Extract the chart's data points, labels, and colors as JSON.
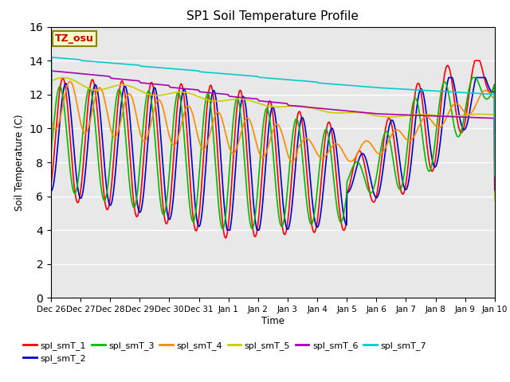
{
  "title": "SP1 Soil Temperature Profile",
  "xlabel": "Time",
  "ylabel": "Soil Temperature (C)",
  "ylim": [
    0,
    16
  ],
  "yticks": [
    0,
    2,
    4,
    6,
    8,
    10,
    12,
    14,
    16
  ],
  "annotation_text": "TZ_osu",
  "annotation_color": "#cc0000",
  "annotation_bg": "#ffffcc",
  "annotation_border": "#888800",
  "bg_color": "#e8e8e8",
  "colors": {
    "spl_smT_1": "#ff0000",
    "spl_smT_2": "#0000cc",
    "spl_smT_3": "#00bb00",
    "spl_smT_4": "#ff8800",
    "spl_smT_5": "#cccc00",
    "spl_smT_6": "#aa00aa",
    "spl_smT_7": "#00cccc"
  },
  "xtick_labels": [
    "Dec 26",
    "Dec 27",
    "Dec 28",
    "Dec 29",
    "Dec 30",
    "Dec 31",
    "Jan 1",
    "Jan 2",
    "Jan 3",
    "Jan 4",
    "Jan 5",
    "Jan 6",
    "Jan 7",
    "Jan 8",
    "Jan 9",
    "Jan 10"
  ],
  "xtick_positions": [
    0,
    24,
    48,
    72,
    96,
    120,
    144,
    168,
    192,
    216,
    240,
    264,
    288,
    312,
    336,
    360
  ]
}
